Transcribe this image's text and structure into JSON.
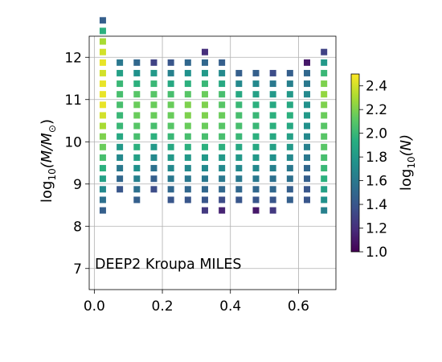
{
  "chart_data": {
    "type": "heatmap",
    "annotation": "DEEP2 Kroupa MILES",
    "xlim": [
      -0.015,
      0.71
    ],
    "ylim": [
      6.5,
      12.5
    ],
    "grid": true,
    "x_ticks": [
      0.0,
      0.2,
      0.4,
      0.6
    ],
    "x_tick_labels": [
      "0.0",
      "0.2",
      "0.4",
      "0.6"
    ],
    "y_ticks": [
      7,
      8,
      9,
      10,
      11,
      12
    ],
    "y_tick_labels": [
      "7",
      "8",
      "9",
      "10",
      "11",
      "12"
    ],
    "ylabel": {
      "base": "log",
      "sub": "10",
      "rest": "(M/M",
      "sun": "⊙",
      "close": ")"
    },
    "colorbar": {
      "label": {
        "base": "log",
        "sub": "10",
        "rest": "(N)"
      },
      "range": [
        1.0,
        2.5
      ],
      "ticks": [
        1.0,
        1.2,
        1.4,
        1.6,
        1.8,
        2.0,
        2.2,
        2.4
      ],
      "tick_labels": [
        "1.0",
        "1.2",
        "1.4",
        "1.6",
        "1.8",
        "2.0",
        "2.2",
        "2.4"
      ],
      "colormap": "viridis"
    },
    "cell_size": {
      "dx": 0.05,
      "dy": 0.25
    },
    "columns": [
      {
        "x": 0.025,
        "y_start": 8.375,
        "values": [
          1.45,
          1.55,
          1.7,
          1.85,
          1.95,
          2.05,
          2.15,
          2.2,
          2.3,
          2.4,
          2.45,
          2.45,
          2.45,
          2.4,
          2.45,
          2.4,
          2.3,
          1.95,
          1.45
        ]
      },
      {
        "x": 0.075,
        "y_start": 8.875,
        "values": [
          1.4,
          1.5,
          1.6,
          1.7,
          1.8,
          1.9,
          2.0,
          2.0,
          2.05,
          2.05,
          2.0,
          1.85,
          1.6
        ]
      },
      {
        "x": 0.125,
        "y_start": 8.625,
        "values": [
          1.45,
          1.55,
          1.65,
          1.75,
          1.85,
          1.95,
          2.05,
          2.1,
          2.15,
          2.15,
          2.1,
          1.95,
          1.75,
          1.5
        ]
      },
      {
        "x": 0.175,
        "y_start": 8.875,
        "values": [
          1.35,
          1.45,
          1.55,
          1.7,
          1.8,
          1.95,
          2.05,
          2.15,
          2.15,
          2.1,
          2.0,
          1.8,
          1.3
        ]
      },
      {
        "x": 0.225,
        "y_start": 8.625,
        "values": [
          1.4,
          1.5,
          1.6,
          1.7,
          1.8,
          1.9,
          2.0,
          2.1,
          2.15,
          2.15,
          2.05,
          1.9,
          1.65,
          1.4
        ]
      },
      {
        "x": 0.275,
        "y_start": 8.625,
        "values": [
          1.4,
          1.5,
          1.6,
          1.7,
          1.8,
          1.95,
          2.05,
          2.15,
          2.2,
          2.2,
          2.1,
          1.95,
          1.75,
          1.5
        ]
      },
      {
        "x": 0.325,
        "y_start": 8.375,
        "values": [
          1.25,
          1.4,
          1.5,
          1.6,
          1.7,
          1.8,
          1.95,
          2.05,
          2.15,
          2.2,
          2.2,
          2.15,
          2.0,
          1.8,
          1.5,
          1.2
        ]
      },
      {
        "x": 0.375,
        "y_start": 8.375,
        "values": [
          1.15,
          1.35,
          1.5,
          1.6,
          1.7,
          1.8,
          1.95,
          2.05,
          2.1,
          2.15,
          2.1,
          2.05,
          1.9,
          1.7,
          1.45
        ]
      },
      {
        "x": 0.425,
        "y_start": 8.625,
        "values": [
          1.4,
          1.5,
          1.6,
          1.7,
          1.8,
          1.9,
          2.0,
          2.05,
          2.05,
          2.0,
          1.9,
          1.7,
          1.45
        ]
      },
      {
        "x": 0.475,
        "y_start": 8.375,
        "values": [
          1.1,
          1.4,
          1.5,
          1.6,
          1.7,
          1.8,
          1.9,
          1.95,
          2.0,
          2.0,
          1.95,
          1.85,
          1.7,
          1.45
        ]
      },
      {
        "x": 0.525,
        "y_start": 8.375,
        "values": [
          1.25,
          1.4,
          1.5,
          1.55,
          1.65,
          1.75,
          1.85,
          1.9,
          1.95,
          1.95,
          1.9,
          1.8,
          1.6,
          1.35
        ]
      },
      {
        "x": 0.575,
        "y_start": 8.625,
        "values": [
          1.45,
          1.45,
          1.55,
          1.6,
          1.7,
          1.8,
          1.85,
          1.9,
          1.95,
          1.9,
          1.8,
          1.65,
          1.45
        ]
      },
      {
        "x": 0.625,
        "y_start": 8.625,
        "values": [
          1.4,
          1.4,
          1.45,
          1.5,
          1.6,
          1.65,
          1.7,
          1.75,
          1.8,
          1.75,
          1.7,
          1.6,
          1.5,
          1.1
        ]
      },
      {
        "x": 0.675,
        "y_start": 8.375,
        "values": [
          1.65,
          1.75,
          1.85,
          1.95,
          2.0,
          2.05,
          2.1,
          2.1,
          2.1,
          2.15,
          2.2,
          2.25,
          2.2,
          2.0,
          1.8,
          1.3
        ]
      }
    ]
  }
}
